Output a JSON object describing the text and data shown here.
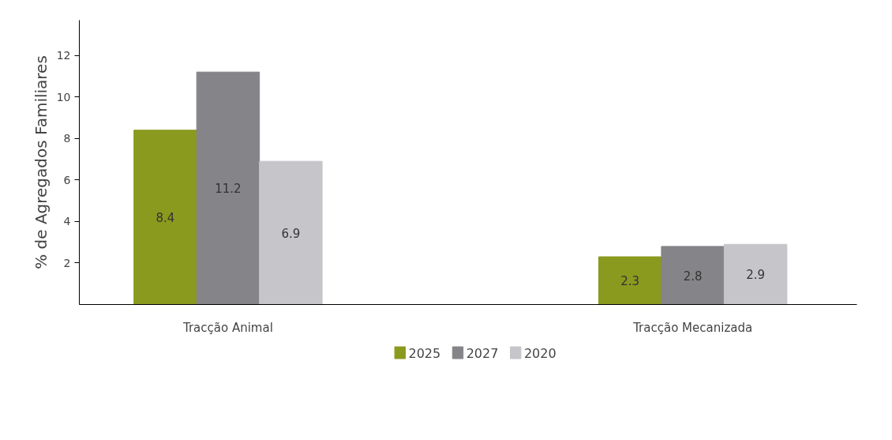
{
  "chart_data": {
    "type": "bar",
    "ylabel": "% de Agregados Familiares",
    "categories": [
      "Tracção Animal",
      "Tracção Mecanizada"
    ],
    "series": [
      {
        "name": "2025",
        "color": "#8a9a1e",
        "values": [
          8.4,
          2.3
        ]
      },
      {
        "name": "2027",
        "color": "#858589",
        "values": [
          11.2,
          2.8
        ]
      },
      {
        "name": "2020",
        "color": "#c6c6ca",
        "values": [
          6.9,
          2.9
        ]
      }
    ],
    "ylim": [
      0,
      13.7
    ],
    "yticks": [
      2,
      4,
      6,
      8,
      10,
      12
    ],
    "data_labels": true,
    "legend": "bottom",
    "grid": false
  }
}
